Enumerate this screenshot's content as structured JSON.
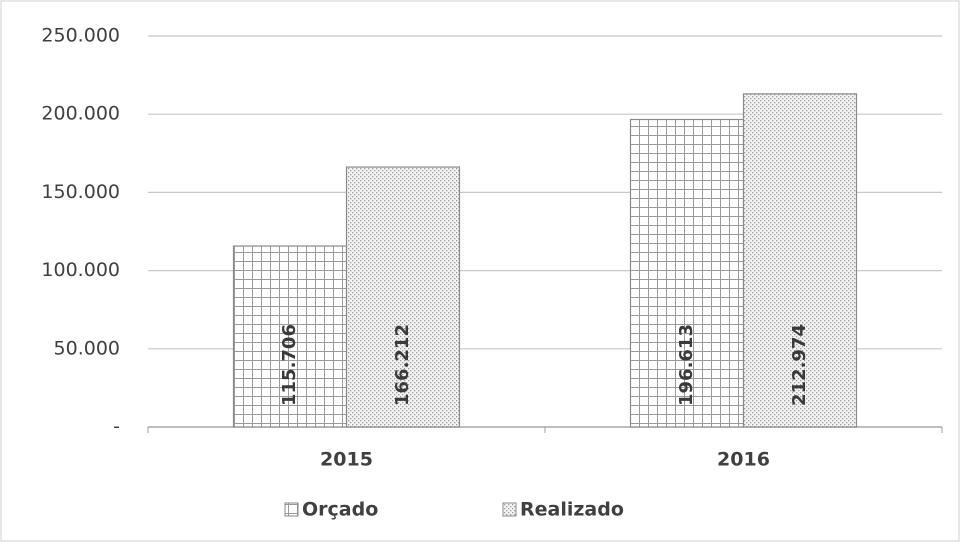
{
  "chart_data": {
    "type": "bar",
    "categories": [
      "2015",
      "2016"
    ],
    "series": [
      {
        "name": "Orçado",
        "color": "#8a8a8a",
        "pattern": "grid",
        "values": [
          115706,
          196613
        ],
        "value_labels": [
          "115.706",
          "196.613"
        ]
      },
      {
        "name": "Realizado",
        "color": "#8a8a8a",
        "pattern": "dots",
        "values": [
          166212,
          212974
        ],
        "value_labels": [
          "166.212",
          "212.974"
        ]
      }
    ],
    "ylim": [
      0,
      250000
    ],
    "yticks": [
      {
        "value": 0,
        "label": "-"
      },
      {
        "value": 50000,
        "label": "50.000"
      },
      {
        "value": 100000,
        "label": "100.000"
      },
      {
        "value": 150000,
        "label": "150.000"
      },
      {
        "value": 200000,
        "label": "200.000"
      },
      {
        "value": 250000,
        "label": "250.000"
      }
    ],
    "grid": true,
    "legend": "bottom"
  }
}
